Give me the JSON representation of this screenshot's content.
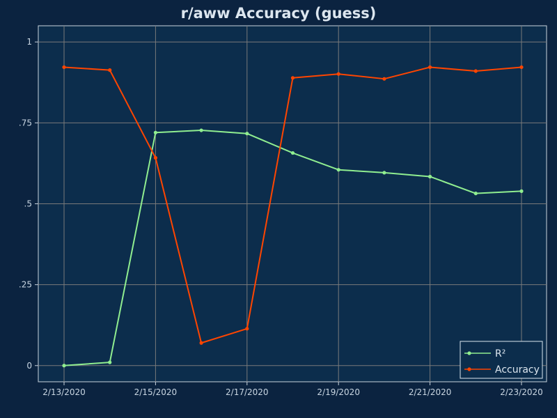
{
  "colors": {
    "page_background": "#0b2340",
    "plot_background": "#0c2d4c",
    "grid": "#7a7a7a",
    "axis_frame": "#c8d3dd",
    "text": "#dce6ef",
    "r2_series": "#90ee90",
    "accuracy_series": "#ff4500"
  },
  "chart_data": {
    "type": "line",
    "title": "r/aww Accuracy (guess)",
    "xlabel": "",
    "ylabel": "",
    "x": [
      "2/13/2020",
      "2/14/2020",
      "2/15/2020",
      "2/16/2020",
      "2/17/2020",
      "2/18/2020",
      "2/19/2020",
      "2/20/2020",
      "2/21/2020",
      "2/22/2020",
      "2/23/2020"
    ],
    "x_tick_labels": [
      "2/13/2020",
      "2/15/2020",
      "2/17/2020",
      "2/19/2020",
      "2/21/2020",
      "2/23/2020"
    ],
    "y_ticks": [
      0,
      0.25,
      0.5,
      0.75,
      1
    ],
    "y_tick_labels": [
      "0",
      ".25",
      ".5",
      ".75",
      "1"
    ],
    "ylim": [
      -0.05,
      1.05
    ],
    "grid": true,
    "legend_position": "bottom-right",
    "series": [
      {
        "name": "R²",
        "color": "#90ee90",
        "values": [
          0.0,
          0.01,
          0.72,
          0.727,
          0.717,
          0.657,
          0.605,
          0.596,
          0.584,
          0.532,
          0.539
        ]
      },
      {
        "name": "Accuracy",
        "color": "#ff4500",
        "values": [
          0.922,
          0.913,
          0.642,
          0.07,
          0.114,
          0.889,
          0.901,
          0.886,
          0.922,
          0.91,
          0.922
        ]
      }
    ]
  }
}
